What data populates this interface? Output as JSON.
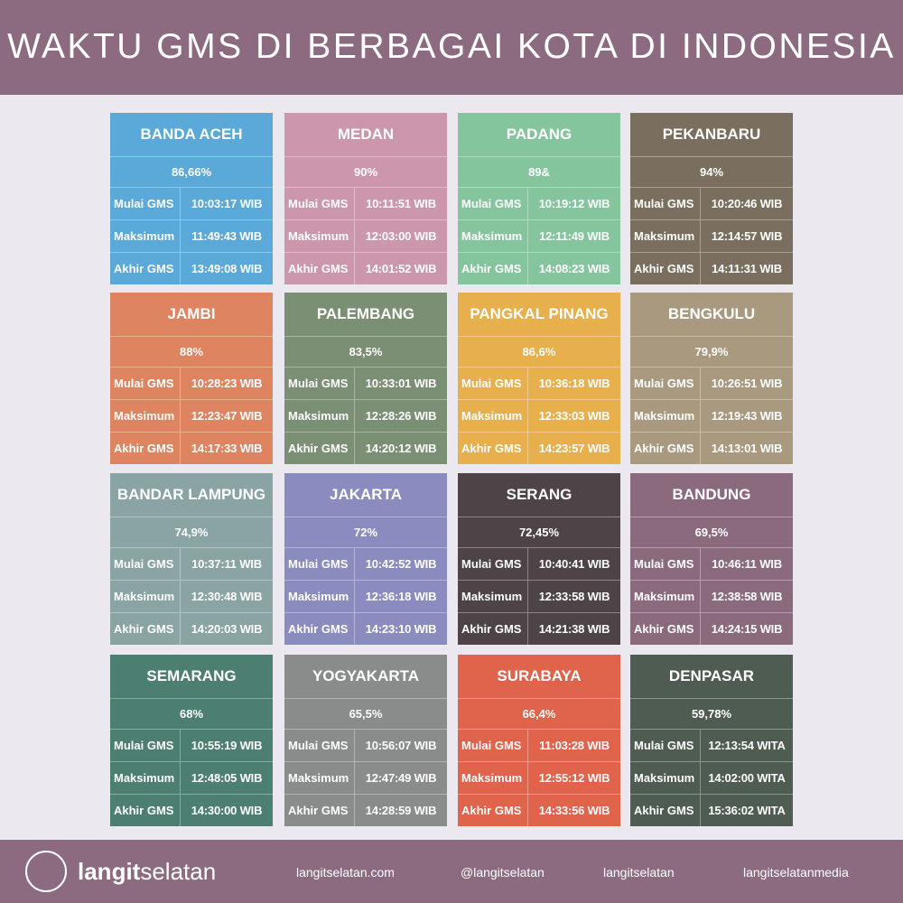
{
  "header": {
    "title": "WAKTU GMS DI BERBAGAI KOTA DI INDONESIA"
  },
  "cards": [
    {
      "city": "BANDA ACEH",
      "percent": "86,66%",
      "color": "#5aa9d8",
      "rows": [
        [
          "Mulai GMS",
          "10:03:17 WIB"
        ],
        [
          "Maksimum",
          "11:49:43 WIB"
        ],
        [
          "Akhir GMS",
          "13:49:08 WIB"
        ]
      ]
    },
    {
      "city": "MEDAN",
      "percent": "90%",
      "color": "#cc97ad",
      "rows": [
        [
          "Mulai GMS",
          "10:11:51 WIB"
        ],
        [
          "Maksimum",
          "12:03:00 WIB"
        ],
        [
          "Akhir GMS",
          "14:01:52 WIB"
        ]
      ]
    },
    {
      "city": "PADANG",
      "percent": "89&",
      "color": "#84c59d",
      "rows": [
        [
          "Mulai GMS",
          "10:19:12 WIB"
        ],
        [
          "Maksimum",
          "12:11:49 WIB"
        ],
        [
          "Akhir GMS",
          "14:08:23 WIB"
        ]
      ]
    },
    {
      "city": "PEKANBARU",
      "percent": "94%",
      "color": "#7a6e5e",
      "rows": [
        [
          "Mulai GMS",
          "10:20:46 WIB"
        ],
        [
          "Maksimum",
          "12:14:57 WIB"
        ],
        [
          "Akhir GMS",
          "14:11:31 WIB"
        ]
      ]
    },
    {
      "city": "JAMBI",
      "percent": "88%",
      "color": "#df8460",
      "rows": [
        [
          "Mulai GMS",
          "10:28:23 WIB"
        ],
        [
          "Maksimum",
          "12:23:47 WIB"
        ],
        [
          "Akhir GMS",
          "14:17:33 WIB"
        ]
      ]
    },
    {
      "city": "PALEMBANG",
      "percent": "83,5%",
      "color": "#7b8f74",
      "rows": [
        [
          "Mulai GMS",
          "10:33:01 WIB"
        ],
        [
          "Maksimum",
          "12:28:26 WIB"
        ],
        [
          "Akhir GMS",
          "14:20:12 WIB"
        ]
      ]
    },
    {
      "city": "PANGKAL PINANG",
      "percent": "86,6%",
      "color": "#e8b04c",
      "rows": [
        [
          "Mulai GMS",
          "10:36:18 WIB"
        ],
        [
          "Maksimum",
          "12:33:03 WIB"
        ],
        [
          "Akhir GMS",
          "14:23:57 WIB"
        ]
      ]
    },
    {
      "city": "BENGKULU",
      "percent": "79,9%",
      "color": "#a8997f",
      "rows": [
        [
          "Mulai GMS",
          "10:26:51 WIB"
        ],
        [
          "Maksimum",
          "12:19:43 WIB"
        ],
        [
          "Akhir GMS",
          "14:13:01 WIB"
        ]
      ]
    },
    {
      "city": "BANDAR LAMPUNG",
      "percent": "74,9%",
      "color": "#8aa3a3",
      "rows": [
        [
          "Mulai GMS",
          "10:37:11 WIB"
        ],
        [
          "Maksimum",
          "12:30:48 WIB"
        ],
        [
          "Akhir GMS",
          "14:20:03 WIB"
        ]
      ]
    },
    {
      "city": "JAKARTA",
      "percent": "72%",
      "color": "#8a8cc0",
      "rows": [
        [
          "Mulai GMS",
          "10:42:52 WIB"
        ],
        [
          "Maksimum",
          "12:36:18 WIB"
        ],
        [
          "Akhir GMS",
          "14:23:10 WIB"
        ]
      ]
    },
    {
      "city": "SERANG",
      "percent": "72,45%",
      "color": "#4e4448",
      "rows": [
        [
          "Mulai GMS",
          "10:40:41 WIB"
        ],
        [
          "Maksimum",
          "12:33:58 WIB"
        ],
        [
          "Akhir GMS",
          "14:21:38 WIB"
        ]
      ]
    },
    {
      "city": "BANDUNG",
      "percent": "69,5%",
      "color": "#8b6a7e",
      "rows": [
        [
          "Mulai GMS",
          "10:46:11 WIB"
        ],
        [
          "Maksimum",
          "12:38:58 WIB"
        ],
        [
          "Akhir GMS",
          "14:24:15 WIB"
        ]
      ]
    },
    {
      "city": "SEMARANG",
      "percent": "68%",
      "color": "#4c7f71",
      "rows": [
        [
          "Mulai GMS",
          "10:55:19 WIB"
        ],
        [
          "Maksimum",
          "12:48:05 WIB"
        ],
        [
          "Akhir GMS",
          "14:30:00 WIB"
        ]
      ]
    },
    {
      "city": "YOGYAKARTA",
      "percent": "65,5%",
      "color": "#8a8b8b",
      "rows": [
        [
          "Mulai GMS",
          "10:56:07 WIB"
        ],
        [
          "Maksimum",
          "12:47:49 WIB"
        ],
        [
          "Akhir GMS",
          "14:28:59 WIB"
        ]
      ]
    },
    {
      "city": "SURABAYA",
      "percent": "66,4%",
      "color": "#e0634b",
      "rows": [
        [
          "Mulai GMS",
          "11:03:28 WIB"
        ],
        [
          "Maksimum",
          "12:55:12 WIB"
        ],
        [
          "Akhir GMS",
          "14:33:56 WIB"
        ]
      ]
    },
    {
      "city": "DENPASAR",
      "percent": "59,78%",
      "color": "#4f5c51",
      "rows": [
        [
          "Mulai GMS",
          "12:13:54 WITA"
        ],
        [
          "Maksimum",
          "14:02:00 WITA"
        ],
        [
          "Akhir GMS",
          "15:36:02 WITA"
        ]
      ]
    }
  ],
  "footer": {
    "brand_bold": "langit",
    "brand_light": "selatan",
    "website": "langitselatan.com",
    "twitter": "@langitselatan",
    "facebook": "langitselatan",
    "instagram": "langitselatanmedia"
  }
}
